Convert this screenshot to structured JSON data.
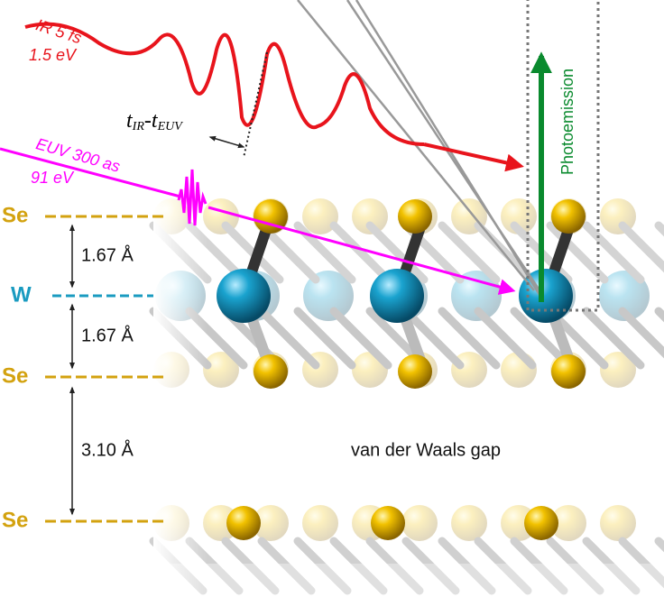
{
  "ir_pulse": {
    "duration": "IR 5 fs",
    "energy": "1.5 eV"
  },
  "euv_pulse": {
    "duration": "EUV 300 as",
    "energy": "91 eV"
  },
  "delay": {
    "t1": "t",
    "sub1": "IR",
    "t2": "-t",
    "sub2": "EUV"
  },
  "photoemission": "Photoemission",
  "layers": [
    {
      "label": "Se"
    },
    {
      "label": "W"
    },
    {
      "label": "Se"
    },
    {
      "label": "Se"
    }
  ],
  "spacings": [
    "1.67 Å",
    "1.67 Å",
    "3.10 Å"
  ],
  "gap": "van der Waals gap"
}
